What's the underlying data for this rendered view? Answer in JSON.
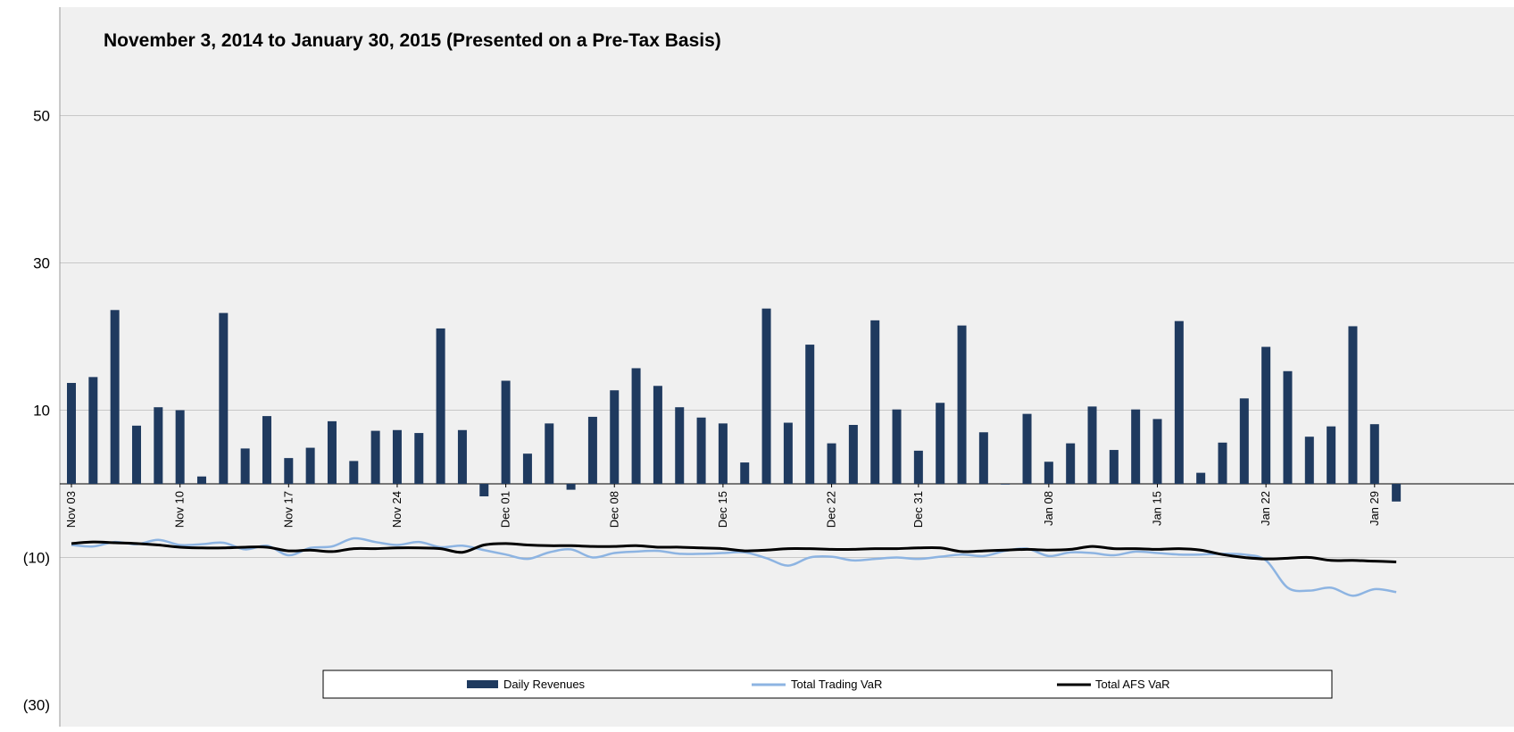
{
  "chart_data": {
    "type": "bar",
    "title": "November 3, 2014 to January 30, 2015 (Presented on a Pre-Tax Basis)",
    "xlabel": "",
    "ylabel": "",
    "ylim": [
      -30,
      60
    ],
    "y_ticks": [
      {
        "value": 50,
        "label": "50"
      },
      {
        "value": 30,
        "label": "30"
      },
      {
        "value": 10,
        "label": "10"
      },
      {
        "value": -10,
        "label": "(10)"
      },
      {
        "value": -30,
        "label": "(30)"
      }
    ],
    "x_tick_labels": [
      {
        "index": 0,
        "label": "Nov 03"
      },
      {
        "index": 5,
        "label": "Nov 10"
      },
      {
        "index": 10,
        "label": "Nov 17"
      },
      {
        "index": 15,
        "label": "Nov 24"
      },
      {
        "index": 20,
        "label": "Dec 01"
      },
      {
        "index": 25,
        "label": "Dec 08"
      },
      {
        "index": 30,
        "label": "Dec 15"
      },
      {
        "index": 35,
        "label": "Dec 22"
      },
      {
        "index": 39,
        "label": "Dec 31"
      },
      {
        "index": 45,
        "label": "Jan 08"
      },
      {
        "index": 50,
        "label": "Jan 15"
      },
      {
        "index": 55,
        "label": "Jan 22"
      },
      {
        "index": 60,
        "label": "Jan 29"
      }
    ],
    "grid": true,
    "legend_position": "bottom",
    "series": [
      {
        "name": "Daily Revenues",
        "type": "bar",
        "color": "#1f3a5f",
        "values": [
          13.7,
          14.5,
          23.6,
          7.9,
          10.4,
          10.0,
          1.0,
          23.2,
          4.8,
          9.2,
          3.5,
          4.9,
          8.5,
          3.1,
          7.2,
          7.3,
          6.9,
          21.1,
          7.3,
          -1.7,
          14.0,
          4.1,
          8.2,
          -0.8,
          9.1,
          12.7,
          15.7,
          13.3,
          10.4,
          9.0,
          8.2,
          2.9,
          23.8,
          8.3,
          18.9,
          5.5,
          8.0,
          22.2,
          10.1,
          4.5,
          11.0,
          21.5,
          7.0,
          -0.1,
          9.5,
          3.0,
          5.5,
          10.5,
          4.6,
          10.1,
          8.8,
          22.1,
          1.5,
          5.6,
          11.6,
          18.6,
          15.3,
          6.4,
          7.8,
          21.4,
          8.1,
          -2.4
        ]
      },
      {
        "name": "Total Trading VaR",
        "type": "line",
        "color": "#8db4e2",
        "values": [
          -8.3,
          -8.5,
          -7.9,
          -8.2,
          -7.6,
          -8.3,
          -8.2,
          -8.0,
          -8.9,
          -8.4,
          -9.7,
          -8.7,
          -8.5,
          -7.4,
          -7.9,
          -8.3,
          -7.9,
          -8.6,
          -8.4,
          -9.0,
          -9.6,
          -10.2,
          -9.3,
          -8.9,
          -10.0,
          -9.4,
          -9.2,
          -9.1,
          -9.5,
          -9.5,
          -9.4,
          -9.3,
          -10.1,
          -11.1,
          -10.0,
          -9.9,
          -10.4,
          -10.2,
          -10.0,
          -10.2,
          -9.9,
          -9.6,
          -9.8,
          -9.1,
          -8.8,
          -9.8,
          -9.3,
          -9.4,
          -9.7,
          -9.2,
          -9.4,
          -9.6,
          -9.6,
          -9.5,
          -9.6,
          -10.4,
          -14.1,
          -14.5,
          -14.1,
          -15.2,
          -14.3,
          -14.7
        ]
      },
      {
        "name": "Total AFS VaR",
        "type": "line",
        "color": "#000000",
        "values": [
          -8.1,
          -7.9,
          -8.0,
          -8.1,
          -8.3,
          -8.6,
          -8.7,
          -8.7,
          -8.6,
          -8.6,
          -9.1,
          -9.0,
          -9.2,
          -8.8,
          -8.8,
          -8.7,
          -8.7,
          -8.8,
          -9.3,
          -8.3,
          -8.1,
          -8.3,
          -8.4,
          -8.4,
          -8.5,
          -8.5,
          -8.4,
          -8.6,
          -8.6,
          -8.7,
          -8.8,
          -9.1,
          -9.0,
          -8.8,
          -8.8,
          -8.9,
          -8.9,
          -8.8,
          -8.8,
          -8.7,
          -8.7,
          -9.2,
          -9.1,
          -9.0,
          -8.9,
          -9.0,
          -8.9,
          -8.5,
          -8.8,
          -8.8,
          -8.9,
          -8.8,
          -9.0,
          -9.6,
          -10.0,
          -10.2,
          -10.1,
          -10.0,
          -10.4,
          -10.4,
          -10.5,
          -10.6
        ]
      }
    ]
  }
}
